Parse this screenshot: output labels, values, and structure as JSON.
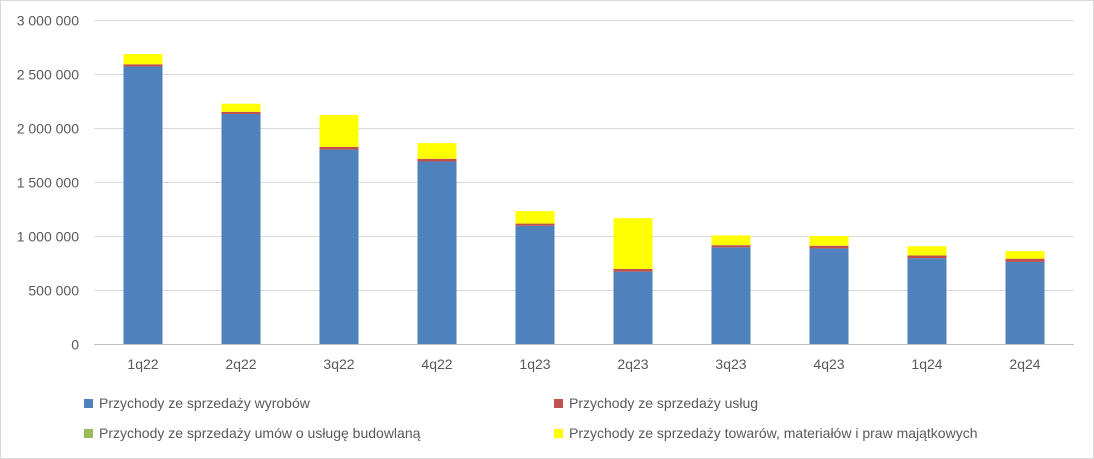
{
  "chart_data": {
    "type": "bar",
    "stacked": true,
    "categories": [
      "1q22",
      "2q22",
      "3q22",
      "4q22",
      "1q23",
      "2q23",
      "3q23",
      "4q23",
      "1q24",
      "2q24"
    ],
    "series": [
      {
        "name": "Przychody ze sprzedaży wyrobów",
        "color": "#4f81bd",
        "values": [
          2570000,
          2130000,
          1800000,
          1690000,
          1095000,
          670000,
          895000,
          885000,
          795000,
          760000
        ]
      },
      {
        "name": "Przychody ze sprzedaży usług",
        "color": "#c0504d",
        "values": [
          20000,
          20000,
          25000,
          25000,
          20000,
          25000,
          20000,
          25000,
          25000,
          30000
        ]
      },
      {
        "name": "Przychody ze sprzedaży umów o usługę budowlaną",
        "color": "#9bbb59",
        "values": [
          0,
          0,
          0,
          0,
          0,
          0,
          0,
          0,
          0,
          0
        ]
      },
      {
        "name": "Przychody ze sprzedaży towarów, materiałów i praw majątkowych",
        "color": "#ffff00",
        "values": [
          95000,
          75000,
          295000,
          145000,
          115000,
          470000,
          90000,
          90000,
          85000,
          70000
        ]
      }
    ],
    "ylim": [
      0,
      3000000
    ],
    "yticks": [
      "0",
      "500 000",
      "1 000 000",
      "1 500 000",
      "2 000 000",
      "2 500 000",
      "3 000 000"
    ],
    "grid": true,
    "legend_position": "bottom"
  }
}
